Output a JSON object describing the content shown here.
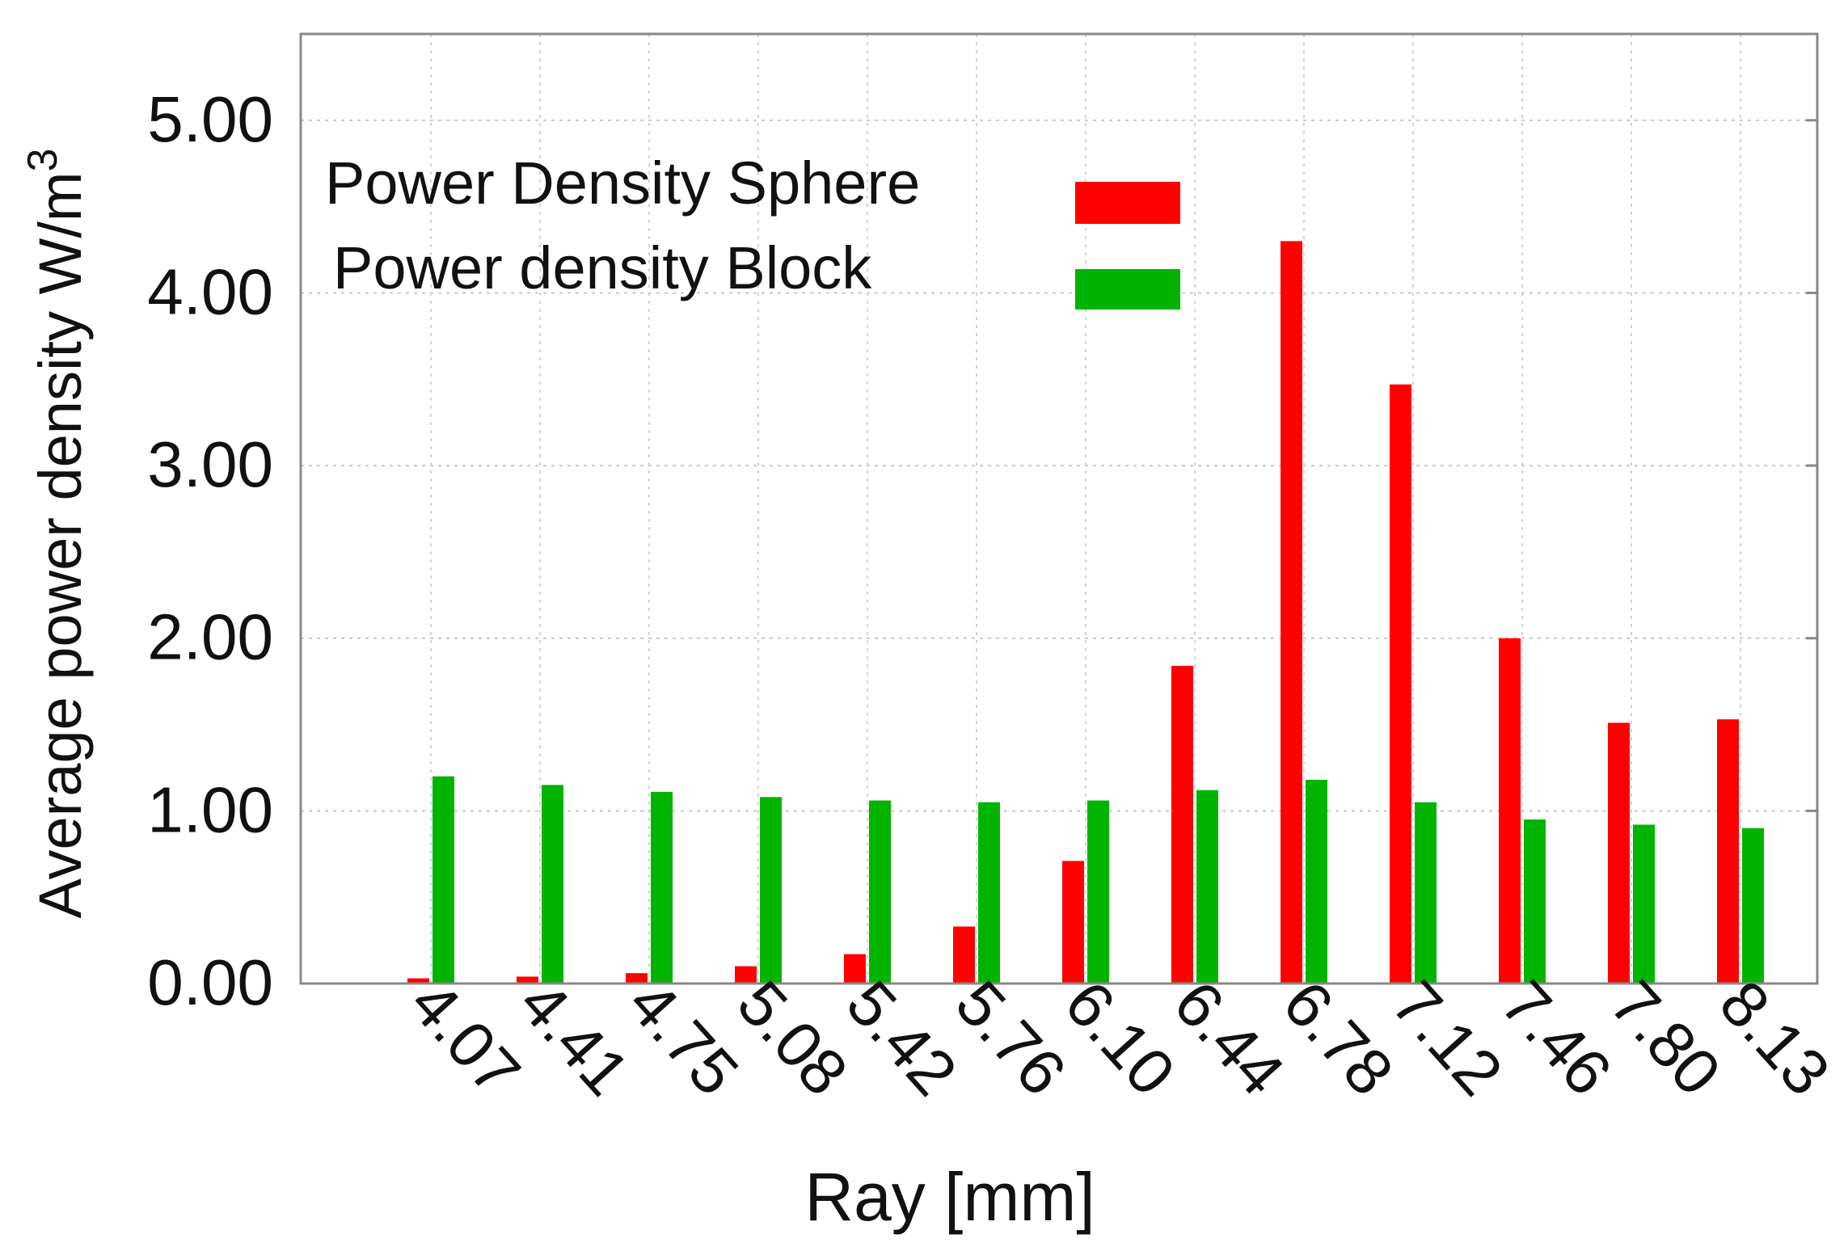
{
  "chart_data": {
    "type": "bar",
    "xlabel": "Ray [mm]",
    "ylabel": "Average power density W/m",
    "ylabel_sup": "3",
    "categories": [
      "4.07",
      "4.41",
      "4.75",
      "5.08",
      "5.42",
      "5.76",
      "6.10",
      "6.44",
      "6.78",
      "7.12",
      "7.46",
      "7.80",
      "8.13"
    ],
    "series": [
      {
        "name": "Power Density Sphere",
        "color": "#ff0000",
        "values": [
          0.03,
          0.04,
          0.06,
          0.1,
          0.17,
          0.33,
          0.71,
          1.84,
          4.3,
          3.47,
          2.0,
          1.51,
          1.53
        ]
      },
      {
        "name": "Power density Block",
        "color": "#00b400",
        "values": [
          1.2,
          1.15,
          1.11,
          1.08,
          1.06,
          1.05,
          1.06,
          1.12,
          1.18,
          1.05,
          0.95,
          0.92,
          0.9
        ]
      }
    ],
    "ylim": [
      0,
      5.5
    ],
    "yticks": [
      "0.00",
      "1.00",
      "2.00",
      "3.00",
      "4.00",
      "5.00"
    ],
    "grid": true,
    "legend_position": "top-left"
  }
}
